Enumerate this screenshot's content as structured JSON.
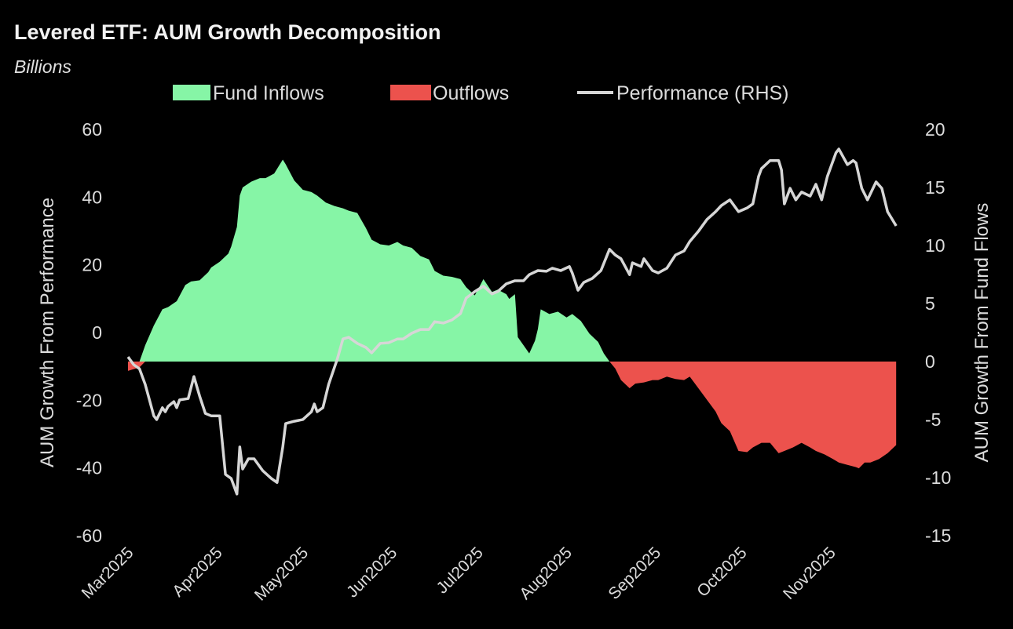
{
  "chart_data": {
    "type": "area",
    "title": "Levered ETF: AUM Growth Decomposition",
    "subtitle": "Billions",
    "x_unit": "days since 2025-03-01",
    "xlabel": "",
    "ylabel_left": "AUM Growth From Performance",
    "ylabel_right": "AUM Growth From Fund Flows",
    "ylim_left": [
      -60,
      60
    ],
    "yticks_left": [
      60,
      40,
      20,
      0,
      -20,
      -40,
      -60
    ],
    "ylim_right": [
      -15,
      20
    ],
    "yticks_right": [
      20,
      15,
      10,
      5,
      0,
      -5,
      -10,
      -15
    ],
    "x_ticks": [
      {
        "label": "Mar2025",
        "x": 0
      },
      {
        "label": "Apr2025",
        "x": 31
      },
      {
        "label": "May2025",
        "x": 61
      },
      {
        "label": "Jun2025",
        "x": 92
      },
      {
        "label": "Jul2025",
        "x": 122
      },
      {
        "label": "Aug2025",
        "x": 153
      },
      {
        "label": "Sep2025",
        "x": 184
      },
      {
        "label": "Oct2025",
        "x": 214
      },
      {
        "label": "Nov2025",
        "x": 245
      }
    ],
    "grid": false,
    "legend": {
      "placement": "top-center",
      "entries": [
        {
          "label": "Fund Inflows",
          "color": "#86f5a6",
          "kind": "area"
        },
        {
          "label": "Outflows",
          "color": "#ec524d",
          "kind": "area"
        },
        {
          "label": "Performance (RHS)",
          "color": "#d6d6d6",
          "kind": "line"
        }
      ]
    },
    "series": [
      {
        "name": "Fund Flows",
        "axis": "right",
        "x": [
          0,
          4,
          6,
          9,
          12,
          14,
          17,
          20,
          22,
          25,
          28,
          29,
          32,
          35,
          36,
          38,
          39,
          40,
          43,
          46,
          48,
          51,
          54,
          55,
          58,
          61,
          64,
          66,
          69,
          72,
          75,
          77,
          80,
          83,
          85,
          88,
          91,
          94,
          96,
          99,
          102,
          105,
          107,
          110,
          113,
          116,
          118,
          121,
          124,
          127,
          129,
          132,
          133,
          135,
          136,
          138,
          140,
          142,
          143,
          144,
          147,
          150,
          153,
          155,
          158,
          161,
          164,
          166,
          168,
          170,
          172,
          175,
          177,
          180,
          183,
          185,
          188,
          191,
          194,
          196,
          199,
          202,
          205,
          207,
          210,
          213,
          216,
          218,
          221,
          224,
          227,
          229,
          232,
          235,
          238,
          240,
          243,
          246,
          248,
          251,
          254,
          255,
          257,
          259,
          262,
          265,
          268
        ],
        "values": [
          -0.8,
          -0.5,
          1.4,
          3.1,
          4.5,
          4.7,
          5.2,
          6.6,
          6.9,
          7.0,
          7.7,
          8.1,
          8.6,
          9.3,
          9.9,
          11.6,
          14.3,
          15.0,
          15.5,
          15.8,
          15.8,
          16.2,
          17.4,
          17.0,
          15.6,
          14.8,
          14.6,
          14.3,
          13.7,
          13.4,
          13.2,
          13.0,
          12.8,
          11.5,
          10.5,
          10.1,
          10.0,
          10.3,
          10.0,
          9.8,
          9.1,
          8.8,
          7.8,
          7.4,
          7.3,
          7.1,
          6.4,
          5.7,
          7.1,
          6.0,
          6.2,
          5.8,
          5.4,
          5.8,
          2.1,
          1.4,
          0.7,
          1.8,
          2.8,
          4.5,
          4.1,
          4.3,
          3.8,
          4.1,
          3.5,
          2.4,
          1.7,
          0.7,
          0.0,
          -0.6,
          -1.6,
          -2.3,
          -1.9,
          -1.8,
          -1.6,
          -1.6,
          -1.3,
          -1.5,
          -1.6,
          -1.3,
          -2.3,
          -3.3,
          -4.3,
          -5.3,
          -6.0,
          -7.7,
          -7.8,
          -7.4,
          -7.0,
          -7.0,
          -7.9,
          -7.7,
          -7.4,
          -7.0,
          -7.4,
          -7.7,
          -8.0,
          -8.4,
          -8.7,
          -8.9,
          -9.1,
          -9.2,
          -8.7,
          -8.7,
          -8.4,
          -7.9,
          -7.2
        ]
      },
      {
        "name": "Performance",
        "axis": "left",
        "x": [
          0,
          2,
          4,
          6,
          9,
          10,
          12,
          13,
          14,
          16,
          17,
          18,
          21,
          23,
          25,
          27,
          29,
          32,
          34,
          36,
          38,
          39,
          40,
          42,
          44,
          47,
          50,
          52,
          54,
          55,
          58,
          61,
          64,
          65,
          66,
          68,
          70,
          73,
          75,
          77,
          80,
          83,
          85,
          88,
          91,
          94,
          96,
          99,
          102,
          105,
          107,
          110,
          113,
          116,
          118,
          121,
          124,
          127,
          129,
          132,
          135,
          138,
          140,
          143,
          146,
          148,
          151,
          154,
          155,
          157,
          159,
          162,
          165,
          168,
          170,
          172,
          175,
          176,
          179,
          180,
          183,
          185,
          188,
          191,
          194,
          196,
          199,
          202,
          205,
          207,
          210,
          213,
          216,
          218,
          220,
          221,
          224,
          227,
          228,
          229,
          231,
          233,
          235,
          238,
          240,
          242,
          244,
          247,
          248,
          251,
          253,
          254,
          256,
          258,
          261,
          263,
          265,
          268
        ],
        "values": [
          -7.2,
          -9.5,
          -10.7,
          -15.3,
          -24.6,
          -25.7,
          -22.2,
          -23.4,
          -21.8,
          -20.4,
          -22.2,
          -19.9,
          -19.5,
          -13.0,
          -18.8,
          -23.9,
          -24.6,
          -24.6,
          -41.9,
          -43.1,
          -47.7,
          -33.8,
          -40.3,
          -37.3,
          -37.3,
          -40.8,
          -43.1,
          -44.3,
          -33.8,
          -26.9,
          -26.2,
          -25.7,
          -23.4,
          -21.1,
          -23.4,
          -22.2,
          -15.3,
          -7.9,
          -1.9,
          -1.4,
          -3.2,
          -4.4,
          -6.0,
          -3.2,
          -3.0,
          -1.9,
          -1.9,
          -0.2,
          0.9,
          0.9,
          3.2,
          2.8,
          3.7,
          5.6,
          10.2,
          12.1,
          13.7,
          11.4,
          12.1,
          14.4,
          15.3,
          15.3,
          17.1,
          18.3,
          18.1,
          19.0,
          18.3,
          19.5,
          17.6,
          12.5,
          14.8,
          16.0,
          18.3,
          24.6,
          22.9,
          21.8,
          17.1,
          20.6,
          19.5,
          21.8,
          18.3,
          17.6,
          19.0,
          22.9,
          24.1,
          26.9,
          29.9,
          33.4,
          35.7,
          37.5,
          39.2,
          35.7,
          36.8,
          38.0,
          46.1,
          48.4,
          50.8,
          50.8,
          48.0,
          38.0,
          42.6,
          39.2,
          41.5,
          40.3,
          43.8,
          39.2,
          46.1,
          53.1,
          54.2,
          49.6,
          50.8,
          50.1,
          42.6,
          39.2,
          44.5,
          42.6,
          35.7,
          31.5
        ]
      }
    ]
  }
}
